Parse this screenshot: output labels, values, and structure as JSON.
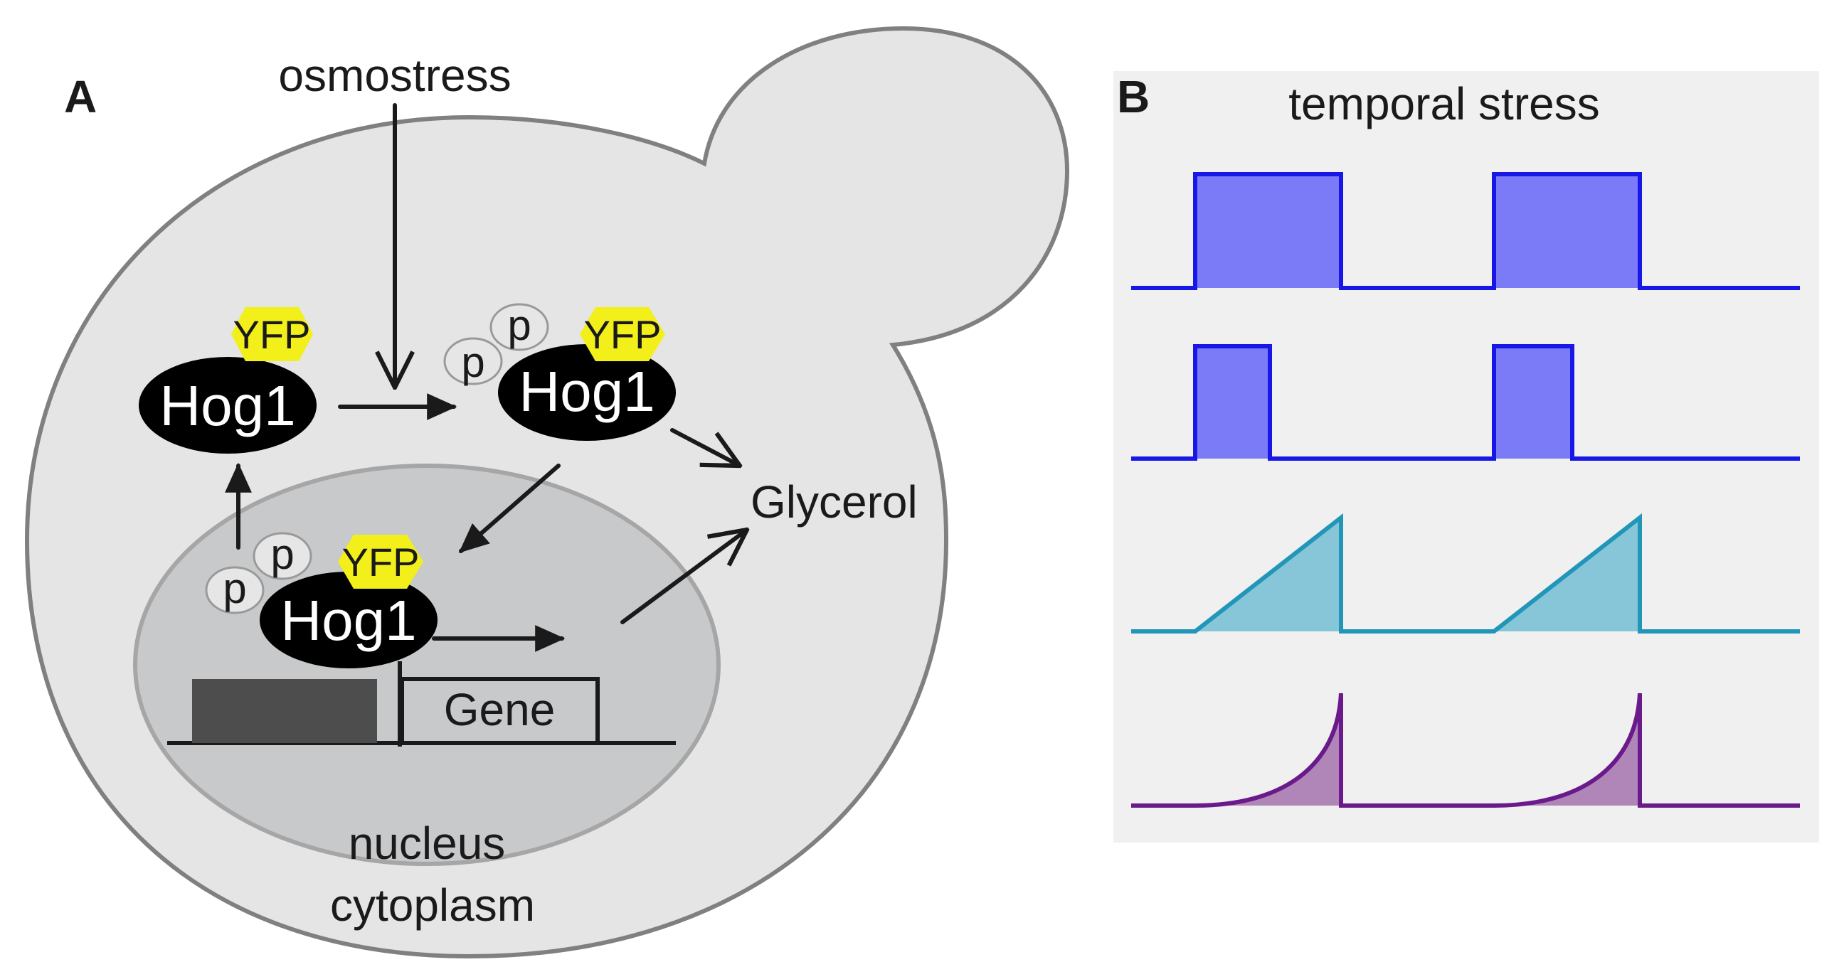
{
  "panel_a": {
    "label": "A",
    "stimulus": "osmostress",
    "protein": "Hog1",
    "tag": "YFP",
    "phospho": "p",
    "product": "Glycerol",
    "gene": "Gene",
    "compartment_nucleus": "nucleus",
    "compartment_cytoplasm": "cytoplasm",
    "colors": {
      "cell_fill": "#e5e5e5",
      "cell_stroke": "#808080",
      "nucleus_fill": "#c8c9ca",
      "yfp": "#f2ef1a",
      "hog1": "#000000",
      "promoter": "#4d4d4d"
    }
  },
  "panel_b": {
    "label": "B",
    "title": "temporal stress",
    "background": "#f0f0f0",
    "profiles": [
      {
        "shape": "long-square-pulse",
        "stroke": "#1818e6",
        "fill": "#7b7bf8"
      },
      {
        "shape": "short-square-pulse",
        "stroke": "#1818e6",
        "fill": "#7b7bf8"
      },
      {
        "shape": "linear-ramp",
        "stroke": "#2196b8",
        "fill": "#86c6d8"
      },
      {
        "shape": "exponential-ramp",
        "stroke": "#6a1a8a",
        "fill": "#b085b8"
      }
    ]
  }
}
